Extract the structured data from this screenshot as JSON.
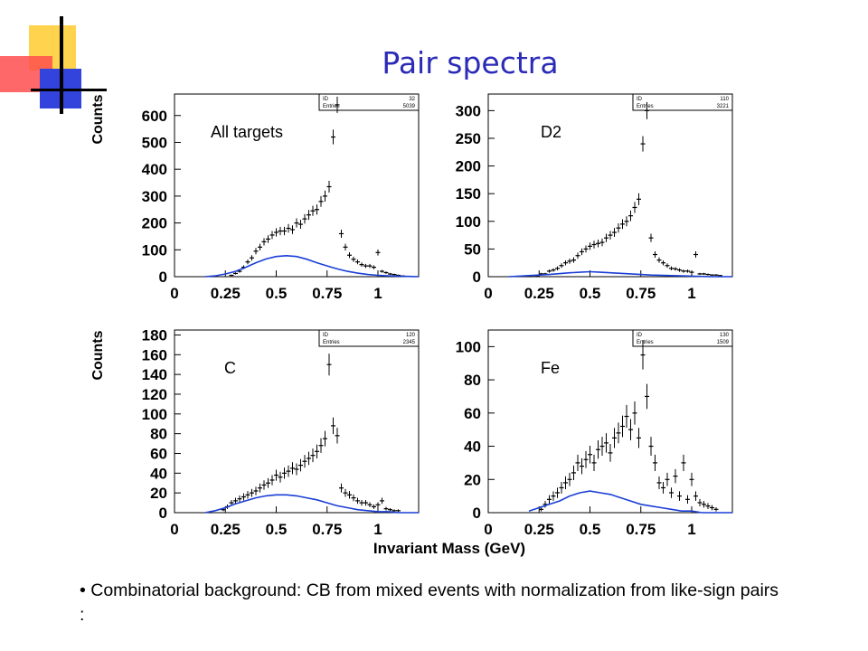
{
  "slide": {
    "title": "Pair spectra",
    "bullet_marker": "•",
    "bullet_text": "Combinatorial background: CB from mixed events with normalization from like-sign pairs :"
  },
  "colors": {
    "title": "#2b2bb8",
    "background_curve": "#1a3fd6",
    "data": "#000000",
    "deco_yellow": "#ffd34d",
    "deco_red": "#ff4d4d",
    "deco_blue": "#3344dd"
  },
  "x_axis_title": "Invariant Mass (GeV)",
  "chart_data": [
    {
      "type": "scatter",
      "label": "All targets",
      "stats_box": {
        "id_label": "ID",
        "id_value": "32",
        "entries_label": "Entries",
        "entries_value": "5039"
      },
      "ylabel": "Counts",
      "xlim": [
        0,
        1.2
      ],
      "ylim": [
        0,
        680
      ],
      "x_ticks": [
        "0",
        "0.25",
        "0.5",
        "0.75",
        "1"
      ],
      "y_ticks": [
        "0",
        "100",
        "200",
        "300",
        "400",
        "500",
        "600"
      ],
      "series": [
        {
          "kind": "data",
          "marker": "point-with-error-bar",
          "x": [
            0.28,
            0.3,
            0.32,
            0.34,
            0.36,
            0.38,
            0.4,
            0.42,
            0.44,
            0.46,
            0.48,
            0.5,
            0.52,
            0.54,
            0.56,
            0.58,
            0.6,
            0.62,
            0.64,
            0.66,
            0.68,
            0.7,
            0.72,
            0.74,
            0.76,
            0.78,
            0.8,
            0.82,
            0.84,
            0.86,
            0.88,
            0.9,
            0.92,
            0.94,
            0.96,
            0.98,
            1.0,
            1.02,
            1.04,
            1.06,
            1.08,
            1.1,
            1.12
          ],
          "y": [
            5,
            12,
            20,
            35,
            55,
            70,
            95,
            110,
            130,
            140,
            155,
            165,
            170,
            170,
            180,
            175,
            200,
            195,
            215,
            230,
            245,
            250,
            280,
            300,
            335,
            520,
            640,
            160,
            110,
            80,
            65,
            55,
            45,
            40,
            40,
            35,
            90,
            20,
            15,
            10,
            8,
            5,
            3
          ]
        },
        {
          "kind": "background",
          "x": [
            0.15,
            0.2,
            0.25,
            0.3,
            0.35,
            0.4,
            0.45,
            0.5,
            0.55,
            0.6,
            0.65,
            0.7,
            0.75,
            0.8,
            0.85,
            0.9,
            0.95,
            1.0,
            1.05,
            1.1,
            1.15,
            1.2
          ],
          "y": [
            0,
            3,
            10,
            20,
            35,
            52,
            66,
            75,
            78,
            75,
            65,
            52,
            40,
            29,
            20,
            13,
            8,
            5,
            3,
            2,
            1,
            0
          ]
        }
      ]
    },
    {
      "type": "scatter",
      "label": "D2",
      "stats_box": {
        "id_label": "ID",
        "id_value": "110",
        "entries_label": "Entries",
        "entries_value": "3221"
      },
      "ylabel": "",
      "xlim": [
        0,
        1.2
      ],
      "ylim": [
        0,
        330
      ],
      "x_ticks": [
        "0",
        "0.25",
        "0.5",
        "0.75",
        "1"
      ],
      "y_ticks": [
        "0",
        "50",
        "100",
        "150",
        "200",
        "250",
        "300"
      ],
      "series": [
        {
          "kind": "data",
          "marker": "point-with-error-bar",
          "x": [
            0.24,
            0.26,
            0.28,
            0.3,
            0.32,
            0.34,
            0.36,
            0.38,
            0.4,
            0.42,
            0.44,
            0.46,
            0.48,
            0.5,
            0.52,
            0.54,
            0.56,
            0.58,
            0.6,
            0.62,
            0.64,
            0.66,
            0.68,
            0.7,
            0.72,
            0.74,
            0.76,
            0.78,
            0.8,
            0.82,
            0.84,
            0.86,
            0.88,
            0.9,
            0.92,
            0.94,
            0.96,
            0.98,
            1.0,
            1.02,
            1.04,
            1.06,
            1.08,
            1.1,
            1.12,
            1.14
          ],
          "y": [
            2,
            5,
            5,
            10,
            12,
            15,
            20,
            25,
            28,
            30,
            38,
            45,
            50,
            55,
            58,
            60,
            62,
            70,
            75,
            80,
            88,
            95,
            100,
            110,
            125,
            140,
            240,
            300,
            70,
            40,
            30,
            25,
            20,
            15,
            14,
            12,
            10,
            10,
            8,
            40,
            5,
            5,
            4,
            3,
            3,
            2
          ]
        },
        {
          "kind": "background",
          "x": [
            0.1,
            0.2,
            0.3,
            0.4,
            0.45,
            0.5,
            0.55,
            0.6,
            0.7,
            0.8,
            0.9,
            1.0,
            1.1,
            1.2
          ],
          "y": [
            0,
            2,
            4,
            7,
            8,
            9,
            8,
            7,
            5,
            3,
            2,
            1,
            0,
            0
          ]
        }
      ]
    },
    {
      "type": "scatter",
      "label": "C",
      "stats_box": {
        "id_label": "ID",
        "id_value": "120",
        "entries_label": "Entries",
        "entries_value": "2345"
      },
      "ylabel": "Counts",
      "xlim": [
        0,
        1.2
      ],
      "ylim": [
        0,
        185
      ],
      "x_ticks": [
        "0",
        "0.25",
        "0.5",
        "0.75",
        "1"
      ],
      "y_ticks": [
        "0",
        "20",
        "40",
        "60",
        "80",
        "100",
        "120",
        "140",
        "160",
        "180"
      ],
      "series": [
        {
          "kind": "data",
          "marker": "point-with-error-bar",
          "x": [
            0.24,
            0.26,
            0.28,
            0.3,
            0.32,
            0.34,
            0.36,
            0.38,
            0.4,
            0.42,
            0.44,
            0.46,
            0.48,
            0.5,
            0.52,
            0.54,
            0.56,
            0.58,
            0.6,
            0.62,
            0.64,
            0.66,
            0.68,
            0.7,
            0.72,
            0.74,
            0.76,
            0.78,
            0.8,
            0.82,
            0.84,
            0.86,
            0.88,
            0.9,
            0.92,
            0.94,
            0.96,
            0.98,
            1.0,
            1.02,
            1.04,
            1.06,
            1.08,
            1.1
          ],
          "y": [
            3,
            6,
            10,
            12,
            14,
            16,
            18,
            20,
            22,
            25,
            28,
            30,
            33,
            38,
            36,
            40,
            42,
            45,
            44,
            48,
            52,
            55,
            58,
            62,
            68,
            75,
            150,
            88,
            78,
            25,
            20,
            18,
            15,
            12,
            10,
            10,
            8,
            6,
            8,
            12,
            4,
            3,
            2,
            2
          ]
        },
        {
          "kind": "background",
          "x": [
            0.15,
            0.2,
            0.25,
            0.3,
            0.35,
            0.4,
            0.45,
            0.5,
            0.55,
            0.6,
            0.65,
            0.7,
            0.75,
            0.8,
            0.85,
            0.9,
            0.95,
            1.0,
            1.05,
            1.1,
            1.2
          ],
          "y": [
            0,
            2,
            5,
            9,
            12,
            15,
            17,
            18,
            18,
            17,
            15,
            13,
            10,
            7,
            5,
            3,
            2,
            1,
            1,
            0,
            0
          ]
        }
      ]
    },
    {
      "type": "scatter",
      "label": "Fe",
      "stats_box": {
        "id_label": "ID",
        "id_value": "130",
        "entries_label": "Entries",
        "entries_value": "1509"
      },
      "ylabel": "",
      "xlim": [
        0,
        1.2
      ],
      "ylim": [
        0,
        110
      ],
      "x_ticks": [
        "0",
        "0.25",
        "0.5",
        "0.75",
        "1"
      ],
      "y_ticks": [
        "0",
        "20",
        "40",
        "60",
        "80",
        "100"
      ],
      "series": [
        {
          "kind": "data",
          "marker": "point-with-error-bar",
          "x": [
            0.26,
            0.28,
            0.3,
            0.32,
            0.34,
            0.36,
            0.38,
            0.4,
            0.42,
            0.44,
            0.46,
            0.48,
            0.5,
            0.52,
            0.54,
            0.56,
            0.58,
            0.6,
            0.62,
            0.64,
            0.66,
            0.68,
            0.7,
            0.72,
            0.74,
            0.76,
            0.78,
            0.8,
            0.82,
            0.84,
            0.86,
            0.88,
            0.9,
            0.92,
            0.94,
            0.96,
            0.98,
            1.0,
            1.02,
            1.04,
            1.06,
            1.08,
            1.1,
            1.12
          ],
          "y": [
            2,
            5,
            8,
            10,
            12,
            15,
            18,
            20,
            24,
            30,
            28,
            32,
            35,
            30,
            38,
            40,
            42,
            36,
            45,
            48,
            52,
            58,
            50,
            60,
            45,
            95,
            70,
            40,
            30,
            18,
            15,
            20,
            12,
            22,
            10,
            30,
            8,
            20,
            10,
            6,
            5,
            4,
            3,
            2
          ]
        },
        {
          "kind": "background",
          "x": [
            0.2,
            0.25,
            0.3,
            0.35,
            0.4,
            0.45,
            0.5,
            0.55,
            0.6,
            0.65,
            0.7,
            0.75,
            0.8,
            0.85,
            0.9,
            0.95,
            1.0,
            1.05,
            1.1,
            1.2
          ],
          "y": [
            1,
            3,
            5,
            7,
            10,
            12,
            13,
            12,
            11,
            9,
            7,
            5,
            4,
            3,
            2,
            1,
            1,
            0,
            0,
            0
          ]
        }
      ]
    }
  ]
}
